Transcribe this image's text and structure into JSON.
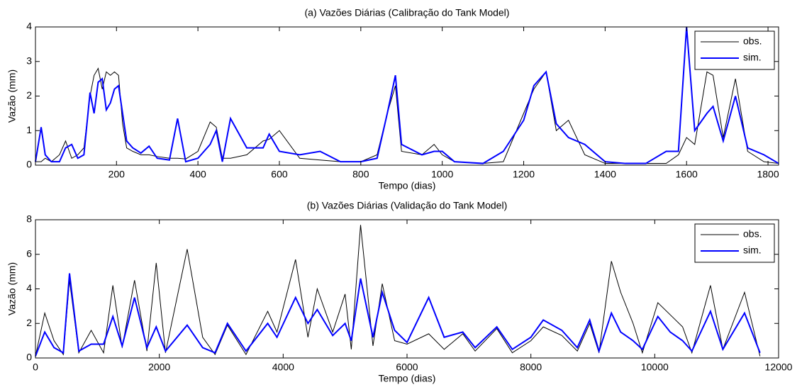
{
  "chart_data": [
    {
      "type": "line",
      "title": "(a) Vazões Diárias (Calibração do Tank Model)",
      "xlabel": "Tempo (dias)",
      "ylabel": "Vazão (mm)",
      "x": [
        1,
        15,
        25,
        40,
        60,
        75,
        90,
        105,
        120,
        135,
        145,
        155,
        165,
        175,
        185,
        195,
        205,
        215,
        225,
        240,
        260,
        280,
        300,
        330,
        350,
        370,
        400,
        430,
        445,
        460,
        480,
        520,
        560,
        575,
        600,
        650,
        700,
        750,
        800,
        840,
        865,
        885,
        900,
        950,
        980,
        1000,
        1030,
        1100,
        1150,
        1200,
        1225,
        1255,
        1280,
        1310,
        1350,
        1400,
        1450,
        1500,
        1550,
        1580,
        1600,
        1620,
        1650,
        1665,
        1690,
        1720,
        1750,
        1790,
        1826
      ],
      "series": [
        {
          "name": "obs.",
          "color": "#000000",
          "values": [
            0.1,
            0.1,
            0.2,
            0.1,
            0.3,
            0.7,
            0.2,
            0.3,
            0.5,
            2.0,
            2.6,
            2.8,
            2.2,
            2.7,
            2.6,
            2.7,
            2.6,
            1.2,
            0.5,
            0.4,
            0.3,
            0.3,
            0.25,
            0.2,
            0.2,
            0.18,
            0.4,
            1.25,
            1.1,
            0.2,
            0.2,
            0.3,
            0.7,
            0.75,
            1.0,
            0.2,
            0.15,
            0.1,
            0.1,
            0.3,
            1.5,
            2.3,
            0.4,
            0.3,
            0.6,
            0.3,
            0.1,
            0.05,
            0.1,
            1.5,
            2.2,
            2.7,
            1.0,
            1.3,
            0.3,
            0.05,
            0.05,
            0.05,
            0.05,
            0.3,
            0.8,
            0.6,
            2.7,
            2.6,
            0.8,
            2.5,
            0.4,
            0.1,
            0.05
          ]
        },
        {
          "name": "sim.",
          "color": "#0000ff",
          "values": [
            0.1,
            1.1,
            0.3,
            0.1,
            0.1,
            0.5,
            0.6,
            0.2,
            0.3,
            2.1,
            1.5,
            2.4,
            2.5,
            1.6,
            1.8,
            2.2,
            2.3,
            1.5,
            0.7,
            0.5,
            0.35,
            0.55,
            0.2,
            0.15,
            1.35,
            0.1,
            0.2,
            0.6,
            1.0,
            0.1,
            1.35,
            0.5,
            0.5,
            0.9,
            0.4,
            0.3,
            0.4,
            0.1,
            0.1,
            0.2,
            1.5,
            2.6,
            0.6,
            0.3,
            0.4,
            0.4,
            0.1,
            0.05,
            0.4,
            1.3,
            2.3,
            2.7,
            1.2,
            0.8,
            0.6,
            0.1,
            0.05,
            0.05,
            0.4,
            0.4,
            4.0,
            1.0,
            1.5,
            1.7,
            0.7,
            2.0,
            0.5,
            0.3,
            0.05
          ]
        }
      ],
      "xlim": [
        1,
        1826
      ],
      "xticks": [
        200,
        400,
        600,
        800,
        1000,
        1200,
        1400,
        1600,
        1800
      ],
      "ylim": [
        0,
        4
      ],
      "yticks": [
        0,
        1,
        2,
        3,
        4
      ],
      "legend": "upper right"
    },
    {
      "type": "line",
      "title": "(b) Vazões Diárias (Validação do Tank Model)",
      "xlabel": "Tempo (dias)",
      "ylabel": "Vazão (mm)",
      "x": [
        0,
        150,
        300,
        450,
        550,
        700,
        900,
        1100,
        1250,
        1400,
        1600,
        1800,
        1950,
        2100,
        2450,
        2700,
        2900,
        3100,
        3400,
        3750,
        3900,
        4200,
        4400,
        4550,
        4800,
        5000,
        5100,
        5250,
        5450,
        5600,
        5800,
        6000,
        6350,
        6600,
        6900,
        7100,
        7450,
        7700,
        8000,
        8200,
        8500,
        8750,
        8950,
        9100,
        9300,
        9450,
        9650,
        9800,
        10050,
        10250,
        10450,
        10600,
        10900,
        11100,
        11450,
        11700
      ],
      "series": [
        {
          "name": "obs.",
          "color": "#000000",
          "values": [
            0.1,
            2.6,
            1.0,
            0.2,
            4.5,
            0.3,
            1.6,
            0.3,
            4.2,
            0.6,
            4.5,
            0.4,
            5.5,
            0.3,
            6.3,
            1.2,
            0.2,
            1.9,
            0.2,
            2.7,
            1.5,
            5.7,
            1.2,
            4.0,
            1.5,
            3.7,
            0.5,
            7.7,
            0.7,
            4.3,
            1.0,
            0.8,
            1.4,
            0.5,
            1.4,
            0.4,
            1.7,
            0.3,
            1.0,
            1.8,
            1.3,
            0.4,
            2.0,
            0.3,
            5.6,
            3.8,
            2.0,
            0.3,
            3.2,
            2.5,
            1.8,
            0.3,
            4.2,
            0.5,
            3.8,
            0.1
          ]
        },
        {
          "name": "sim.",
          "color": "#0000ff",
          "values": [
            0.1,
            1.5,
            0.6,
            0.3,
            4.9,
            0.4,
            0.8,
            0.8,
            2.4,
            0.7,
            3.5,
            0.6,
            1.8,
            0.4,
            1.9,
            0.6,
            0.3,
            2.0,
            0.4,
            2.0,
            1.2,
            3.5,
            2.0,
            2.8,
            1.3,
            2.0,
            1.0,
            4.6,
            1.2,
            3.8,
            1.6,
            0.9,
            3.5,
            1.2,
            1.5,
            0.6,
            1.8,
            0.5,
            1.2,
            2.2,
            1.6,
            0.6,
            2.2,
            0.4,
            2.6,
            1.5,
            1.0,
            0.5,
            2.4,
            1.5,
            1.0,
            0.4,
            2.7,
            0.5,
            2.6,
            0.3
          ]
        }
      ],
      "xlim": [
        0,
        12000
      ],
      "xticks": [
        0,
        2000,
        4000,
        6000,
        8000,
        10000,
        12000
      ],
      "ylim": [
        0,
        8
      ],
      "yticks": [
        0,
        2,
        4,
        6,
        8
      ],
      "legend": "upper right"
    }
  ]
}
